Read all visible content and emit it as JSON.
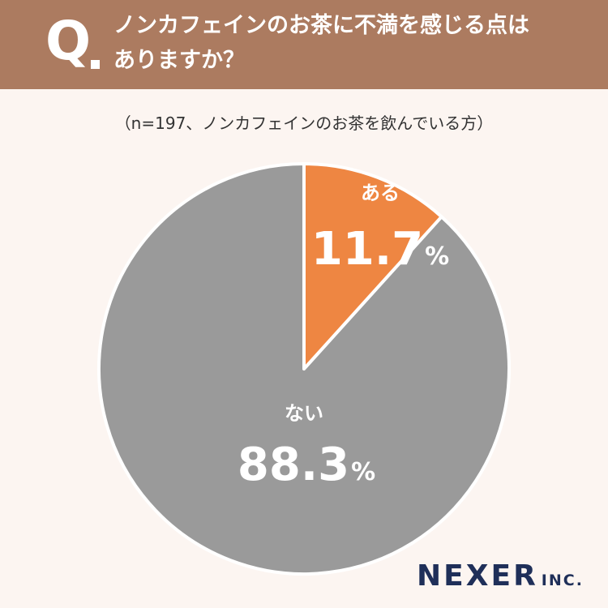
{
  "header": {
    "q_label": "Q",
    "line1": "ノンカフェインのお茶に不満を感じる点は",
    "line2": "ありますか？"
  },
  "sample_note": "（n=197、ノンカフェインのお茶を飲んでいる方）",
  "colors": {
    "header_bg": "#ac7b60",
    "background": "#fcf5f1",
    "slice_aru": "#ee8642",
    "slice_nai": "#9a9a9a",
    "brand": "#1f2f59"
  },
  "chart_data": {
    "type": "pie",
    "title": "ノンカフェインのお茶に不満を感じる点はありますか？",
    "slices": [
      {
        "label": "ある",
        "value": 11.7,
        "value_text": "11.7",
        "unit": "%",
        "color": "#ee8642"
      },
      {
        "label": "ない",
        "value": 88.3,
        "value_text": "88.3",
        "unit": "%",
        "color": "#9a9a9a"
      }
    ]
  },
  "brand": {
    "name": "NEXER",
    "suffix": "INC."
  }
}
